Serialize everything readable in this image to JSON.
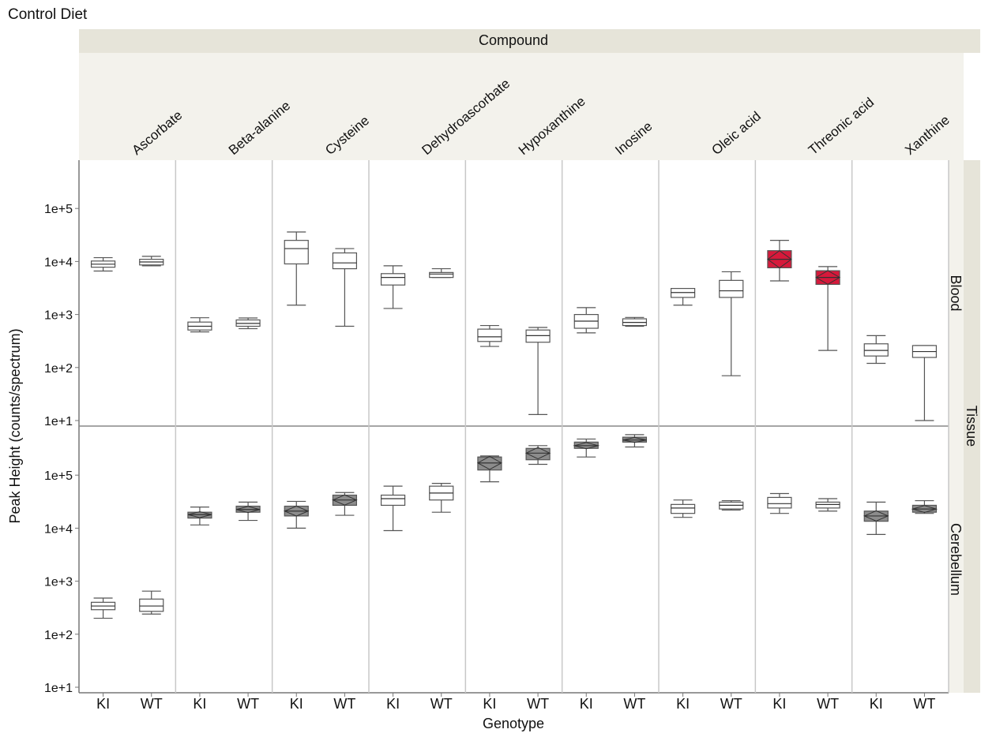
{
  "chart_data": {
    "type": "box",
    "title": "Control Diet",
    "facet_column_header": "Compound",
    "facet_row_header": "Tissue",
    "xlabel": "Genotype",
    "ylabel": "Peak Height (counts/spectrum)",
    "y_scale": "log",
    "y_ticks": [
      "1e+1",
      "1e+2",
      "1e+3",
      "1e+4",
      "1e+5"
    ],
    "ylim": {
      "Blood": [
        10,
        1000000
      ],
      "Cerebellum": [
        10,
        1000000
      ]
    },
    "x_categories": [
      "KI",
      "WT"
    ],
    "compounds": [
      "Ascorbate",
      "Beta-alanine",
      "Cysteine",
      "Dehydroascorbate",
      "Hypoxanthine",
      "Inosine",
      "Oleic acid",
      "Threonic acid",
      "Xanthine"
    ],
    "tissues": [
      "Blood",
      "Cerebellum"
    ],
    "colors": {
      "significant_up": "#d7193b",
      "significant": "#8c8c8c",
      "normal": "#ffffff"
    },
    "boxes": [
      {
        "tissue": "Blood",
        "compound": "Ascorbate",
        "genotype": "KI",
        "min": 6600,
        "q1": 7800,
        "median": 8900,
        "q3": 10200,
        "max": 11800,
        "highlight": "none"
      },
      {
        "tissue": "Blood",
        "compound": "Ascorbate",
        "genotype": "WT",
        "min": 8300,
        "q1": 8600,
        "median": 9800,
        "q3": 11000,
        "max": 12500,
        "highlight": "none"
      },
      {
        "tissue": "Blood",
        "compound": "Beta-alanine",
        "genotype": "KI",
        "min": 470,
        "q1": 510,
        "median": 600,
        "q3": 720,
        "max": 870,
        "highlight": "none"
      },
      {
        "tissue": "Blood",
        "compound": "Beta-alanine",
        "genotype": "WT",
        "min": 540,
        "q1": 600,
        "median": 680,
        "q3": 790,
        "max": 860,
        "highlight": "none"
      },
      {
        "tissue": "Blood",
        "compound": "Cysteine",
        "genotype": "KI",
        "min": 1500,
        "q1": 9000,
        "median": 17500,
        "q3": 25000,
        "max": 36000,
        "highlight": "none"
      },
      {
        "tissue": "Blood",
        "compound": "Cysteine",
        "genotype": "WT",
        "min": 600,
        "q1": 7300,
        "median": 9400,
        "q3": 14500,
        "max": 17500,
        "highlight": "none"
      },
      {
        "tissue": "Blood",
        "compound": "Dehydroascorbate",
        "genotype": "KI",
        "min": 1300,
        "q1": 3600,
        "median": 5000,
        "q3": 5900,
        "max": 8300,
        "highlight": "none"
      },
      {
        "tissue": "Blood",
        "compound": "Dehydroascorbate",
        "genotype": "WT",
        "min": 5000,
        "q1": 5000,
        "median": 5800,
        "q3": 6200,
        "max": 7300,
        "highlight": "none"
      },
      {
        "tissue": "Blood",
        "compound": "Hypoxanthine",
        "genotype": "KI",
        "min": 250,
        "q1": 310,
        "median": 380,
        "q3": 530,
        "max": 620,
        "highlight": "none"
      },
      {
        "tissue": "Blood",
        "compound": "Hypoxanthine",
        "genotype": "WT",
        "min": 13,
        "q1": 300,
        "median": 400,
        "q3": 510,
        "max": 570,
        "highlight": "none"
      },
      {
        "tissue": "Blood",
        "compound": "Inosine",
        "genotype": "KI",
        "min": 450,
        "q1": 550,
        "median": 750,
        "q3": 1000,
        "max": 1350,
        "highlight": "none"
      },
      {
        "tissue": "Blood",
        "compound": "Inosine",
        "genotype": "WT",
        "min": 600,
        "q1": 620,
        "median": 710,
        "q3": 830,
        "max": 880,
        "highlight": "none"
      },
      {
        "tissue": "Blood",
        "compound": "Oleic acid",
        "genotype": "KI",
        "min": 1500,
        "q1": 2100,
        "median": 2600,
        "q3": 3100,
        "max": 3100,
        "highlight": "none"
      },
      {
        "tissue": "Blood",
        "compound": "Oleic acid",
        "genotype": "WT",
        "min": 70,
        "q1": 2100,
        "median": 2800,
        "q3": 4400,
        "max": 6400,
        "highlight": "none"
      },
      {
        "tissue": "Blood",
        "compound": "Threonic acid",
        "genotype": "KI",
        "min": 4300,
        "q1": 7600,
        "median": 11000,
        "q3": 16000,
        "max": 25000,
        "highlight": "red"
      },
      {
        "tissue": "Blood",
        "compound": "Threonic acid",
        "genotype": "WT",
        "min": 210,
        "q1": 3700,
        "median": 5000,
        "q3": 6700,
        "max": 8000,
        "highlight": "red"
      },
      {
        "tissue": "Blood",
        "compound": "Xanthine",
        "genotype": "KI",
        "min": 120,
        "q1": 165,
        "median": 210,
        "q3": 280,
        "max": 400,
        "highlight": "none"
      },
      {
        "tissue": "Blood",
        "compound": "Xanthine",
        "genotype": "WT",
        "min": 10,
        "q1": 155,
        "median": 200,
        "q3": 260,
        "max": 260,
        "highlight": "none"
      },
      {
        "tissue": "Cerebellum",
        "compound": "Ascorbate",
        "genotype": "KI",
        "min": 200,
        "q1": 290,
        "median": 340,
        "q3": 400,
        "max": 480,
        "highlight": "none"
      },
      {
        "tissue": "Cerebellum",
        "compound": "Ascorbate",
        "genotype": "WT",
        "min": 240,
        "q1": 270,
        "median": 340,
        "q3": 460,
        "max": 650,
        "highlight": "none"
      },
      {
        "tissue": "Cerebellum",
        "compound": "Beta-alanine",
        "genotype": "KI",
        "min": 11500,
        "q1": 15500,
        "median": 18000,
        "q3": 20000,
        "max": 25000,
        "highlight": "gray"
      },
      {
        "tissue": "Cerebellum",
        "compound": "Beta-alanine",
        "genotype": "WT",
        "min": 14000,
        "q1": 20000,
        "median": 22500,
        "q3": 26000,
        "max": 31000,
        "highlight": "gray"
      },
      {
        "tissue": "Cerebellum",
        "compound": "Cysteine",
        "genotype": "KI",
        "min": 10000,
        "q1": 17000,
        "median": 21000,
        "q3": 26000,
        "max": 32000,
        "highlight": "gray"
      },
      {
        "tissue": "Cerebellum",
        "compound": "Cysteine",
        "genotype": "WT",
        "min": 17500,
        "q1": 27000,
        "median": 34000,
        "q3": 42000,
        "max": 47000,
        "highlight": "gray"
      },
      {
        "tissue": "Cerebellum",
        "compound": "Dehydroascorbate",
        "genotype": "KI",
        "min": 9000,
        "q1": 27000,
        "median": 36000,
        "q3": 42000,
        "max": 62000,
        "highlight": "none"
      },
      {
        "tissue": "Cerebellum",
        "compound": "Dehydroascorbate",
        "genotype": "WT",
        "min": 20000,
        "q1": 34000,
        "median": 46000,
        "q3": 62000,
        "max": 70000,
        "highlight": "none"
      },
      {
        "tissue": "Cerebellum",
        "compound": "Hypoxanthine",
        "genotype": "KI",
        "min": 75000,
        "q1": 125000,
        "median": 170000,
        "q3": 220000,
        "max": 230000,
        "highlight": "gray"
      },
      {
        "tissue": "Cerebellum",
        "compound": "Hypoxanthine",
        "genotype": "WT",
        "min": 160000,
        "q1": 195000,
        "median": 260000,
        "q3": 320000,
        "max": 360000,
        "highlight": "gray"
      },
      {
        "tissue": "Cerebellum",
        "compound": "Inosine",
        "genotype": "KI",
        "min": 220000,
        "q1": 320000,
        "median": 360000,
        "q3": 420000,
        "max": 480000,
        "highlight": "gray"
      },
      {
        "tissue": "Cerebellum",
        "compound": "Inosine",
        "genotype": "WT",
        "min": 340000,
        "q1": 420000,
        "median": 460000,
        "q3": 520000,
        "max": 580000,
        "highlight": "gray"
      },
      {
        "tissue": "Cerebellum",
        "compound": "Oleic acid",
        "genotype": "KI",
        "min": 16000,
        "q1": 19000,
        "median": 24000,
        "q3": 28000,
        "max": 34000,
        "highlight": "none"
      },
      {
        "tissue": "Cerebellum",
        "compound": "Oleic acid",
        "genotype": "WT",
        "min": 22000,
        "q1": 23000,
        "median": 27000,
        "q3": 31000,
        "max": 33000,
        "highlight": "none"
      },
      {
        "tissue": "Cerebellum",
        "compound": "Threonic acid",
        "genotype": "KI",
        "min": 19000,
        "q1": 24000,
        "median": 29000,
        "q3": 38000,
        "max": 45000,
        "highlight": "none"
      },
      {
        "tissue": "Cerebellum",
        "compound": "Threonic acid",
        "genotype": "WT",
        "min": 21000,
        "q1": 24000,
        "median": 28000,
        "q3": 31000,
        "max": 36000,
        "highlight": "none"
      },
      {
        "tissue": "Cerebellum",
        "compound": "Xanthine",
        "genotype": "KI",
        "min": 7600,
        "q1": 13500,
        "median": 17000,
        "q3": 21000,
        "max": 31000,
        "highlight": "gray"
      },
      {
        "tissue": "Cerebellum",
        "compound": "Xanthine",
        "genotype": "WT",
        "min": 19000,
        "q1": 20000,
        "median": 23000,
        "q3": 27000,
        "max": 33000,
        "highlight": "gray"
      }
    ]
  }
}
